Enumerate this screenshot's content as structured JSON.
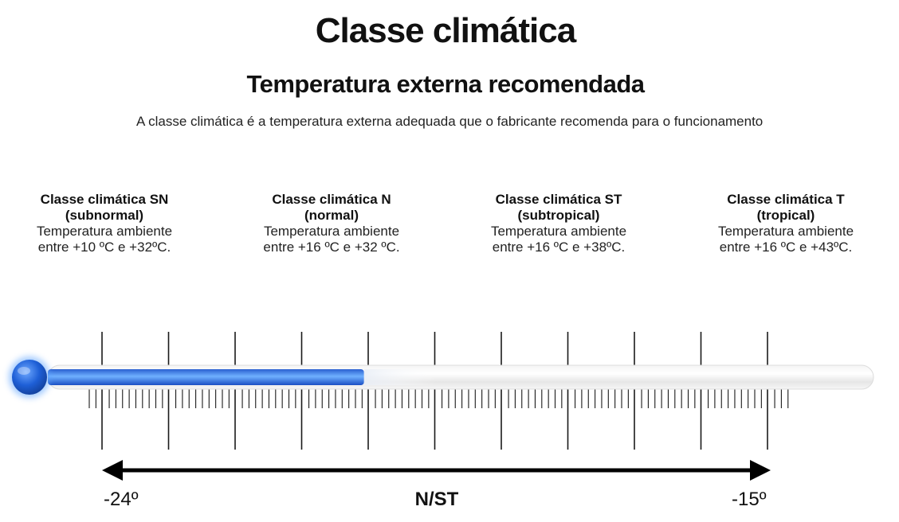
{
  "header": {
    "title": "Classe climática",
    "subtitle": "Temperatura externa recomendada",
    "intro": "A classe climática é a temperatura externa adequada que o fabricante recomenda para o funcionamento"
  },
  "classes": [
    {
      "name": "Classe climática SN",
      "type": "(subnormal)",
      "line1": "Temperatura ambiente",
      "line2": "entre +10 ºC e +32ºC."
    },
    {
      "name": "Classe climática N",
      "type": "(normal)",
      "line1": "Temperatura ambiente",
      "line2": "entre +16 ºC e +32 ºC."
    },
    {
      "name": "Classe climática ST",
      "type": "(subtropical)",
      "line1": "Temperatura ambiente",
      "line2": "entre +16 ºC e +38ºC."
    },
    {
      "name": "Classe climática T",
      "type": "(tropical)",
      "line1": "Temperatura ambiente",
      "line2": "entre +16 ºC e +43ºC."
    }
  ],
  "scale": {
    "min_label": "-24º",
    "max_label": "-15º",
    "center_label": "N/ST",
    "fill_fraction": 0.41,
    "fluid_color": "#1e63d6",
    "fluid_glow": "#5aa2ff"
  }
}
